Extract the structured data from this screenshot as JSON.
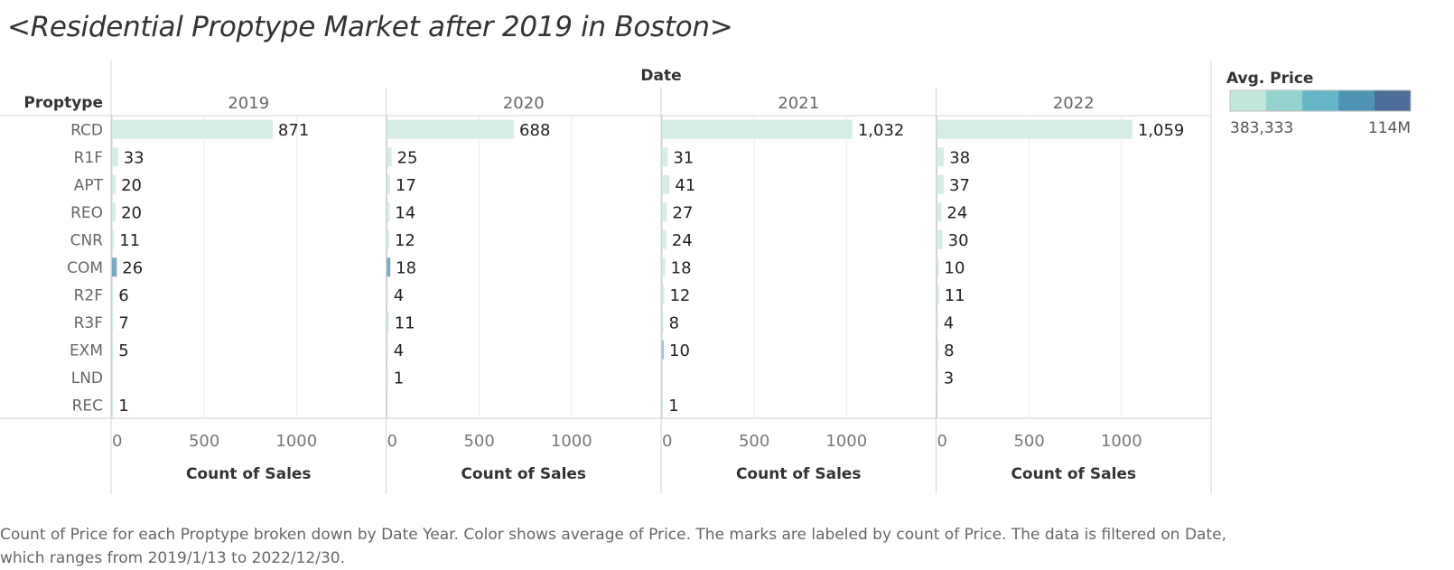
{
  "title": "<Residential Proptype  Market after 2019 in Boston>",
  "footnote": "Count of Price for each Proptype broken down by Date Year.  Color shows average of Price.  The marks are labeled by count of Price. The data is filtered on Date, which ranges from 2019/1/13 to 2022/12/30.",
  "legend": {
    "title": "Avg. Price",
    "min_label": "383,333",
    "max_label": "114M",
    "colors": [
      "#c1e6da",
      "#95d1cf",
      "#66b6c8",
      "#4f95b3",
      "#4c6d97"
    ]
  },
  "chart_data": {
    "type": "bar",
    "orientation": "horizontal",
    "column_header": "Date",
    "row_header": "Proptype",
    "xlabel": "Count of Sales",
    "xlim": [
      0,
      1400
    ],
    "xticks": [
      0,
      500,
      1000
    ],
    "categories": [
      "RCD",
      "R1F",
      "APT",
      "REO",
      "CNR",
      "COM",
      "R2F",
      "R3F",
      "EXM",
      "LND",
      "REC"
    ],
    "series": [
      {
        "name": "2019",
        "values": [
          871,
          33,
          20,
          20,
          11,
          26,
          6,
          7,
          5,
          null,
          1
        ],
        "colors": [
          "#d5ede6",
          "#d5ede6",
          "#d5ede6",
          "#d5ede6",
          "#d5ede6",
          "#7aa9c4",
          "#d5ede6",
          "#d5ede6",
          "#d5ede6",
          null,
          "#d5ede6"
        ]
      },
      {
        "name": "2020",
        "values": [
          688,
          25,
          17,
          14,
          12,
          18,
          4,
          11,
          4,
          1,
          null
        ],
        "colors": [
          "#d5ede6",
          "#d5ede6",
          "#d5ede6",
          "#d5ede6",
          "#d5ede6",
          "#7aa9c4",
          "#d5ede6",
          "#d5ede6",
          "#d5ede6",
          "#d5ede6",
          null
        ]
      },
      {
        "name": "2021",
        "values": [
          1032,
          31,
          41,
          27,
          24,
          18,
          12,
          8,
          10,
          null,
          1
        ],
        "colors": [
          "#d5ede6",
          "#d5ede6",
          "#d5ede6",
          "#d5ede6",
          "#d5ede6",
          "#d5ede6",
          "#d5ede6",
          "#d5ede6",
          "#9ec4d3",
          null,
          "#d5ede6"
        ]
      },
      {
        "name": "2022",
        "values": [
          1059,
          38,
          37,
          24,
          30,
          10,
          11,
          4,
          8,
          3,
          null
        ],
        "colors": [
          "#d5ede6",
          "#d5ede6",
          "#d5ede6",
          "#d5ede6",
          "#d5ede6",
          "#d5ede6",
          "#d5ede6",
          "#d5ede6",
          "#d5ede6",
          "#d5ede6",
          null
        ]
      }
    ]
  }
}
